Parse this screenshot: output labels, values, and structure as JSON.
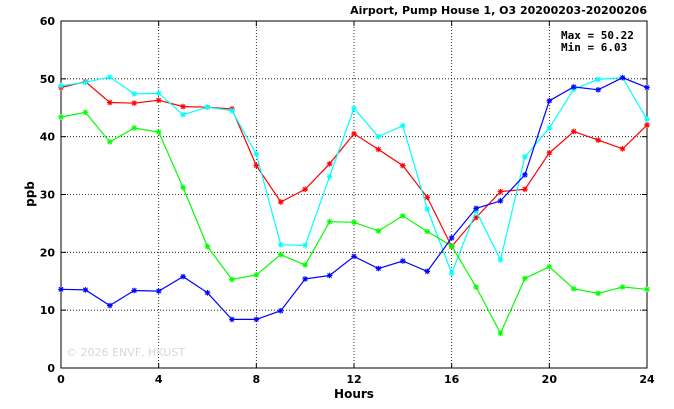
{
  "chart_data": {
    "type": "line",
    "title": "Airport, Pump House 1, O3 20200203-20200206",
    "xlabel": "Hours",
    "ylabel": "ppb",
    "xlim": [
      0,
      24
    ],
    "ylim": [
      0,
      60
    ],
    "xticks": [
      0,
      4,
      8,
      12,
      16,
      20,
      24
    ],
    "yticks": [
      0,
      10,
      20,
      30,
      40,
      50,
      60
    ],
    "grid": true,
    "stats": {
      "max": "Max = 50.22",
      "min": "Min =  6.03"
    },
    "watermark": "© 2026 ENVF, HKUST",
    "x": [
      0,
      1,
      2,
      3,
      4,
      5,
      6,
      7,
      8,
      9,
      10,
      11,
      12,
      13,
      14,
      15,
      16,
      17,
      18,
      19,
      20,
      21,
      22,
      23,
      24
    ],
    "series": [
      {
        "color": "#ff0000",
        "values": [
          48.5,
          49.5,
          45.9,
          45.8,
          46.3,
          45.2,
          45.1,
          44.8,
          35.0,
          28.7,
          30.9,
          35.3,
          40.5,
          37.8,
          35.0,
          29.5,
          21.0,
          26.0,
          30.5,
          30.9,
          37.2,
          40.9,
          39.4,
          37.9,
          42.0
        ]
      },
      {
        "color": "#00ffff",
        "values": [
          48.8,
          49.4,
          50.3,
          47.4,
          47.5,
          43.8,
          45.1,
          44.5,
          37.0,
          21.3,
          21.2,
          33.1,
          44.9,
          40.0,
          41.9,
          27.5,
          16.4,
          27.2,
          18.7,
          36.5,
          41.5,
          48.2,
          49.9,
          50.2,
          43.0
        ]
      },
      {
        "color": "#00ff00",
        "values": [
          43.4,
          44.2,
          39.1,
          41.5,
          40.8,
          31.2,
          21.0,
          15.3,
          16.1,
          19.6,
          17.8,
          25.3,
          25.2,
          23.7,
          26.3,
          23.6,
          21.1,
          14.0,
          6.0,
          15.5,
          17.5,
          13.7,
          12.9,
          14.0,
          13.6
        ]
      },
      {
        "color": "#0000ff",
        "values": [
          13.6,
          13.5,
          10.8,
          13.4,
          13.3,
          15.8,
          13.0,
          8.4,
          8.4,
          9.9,
          15.4,
          16.0,
          19.3,
          17.2,
          18.5,
          16.7,
          22.5,
          27.6,
          28.9,
          33.4,
          46.2,
          48.6,
          48.1,
          50.2,
          48.5
        ]
      }
    ]
  }
}
